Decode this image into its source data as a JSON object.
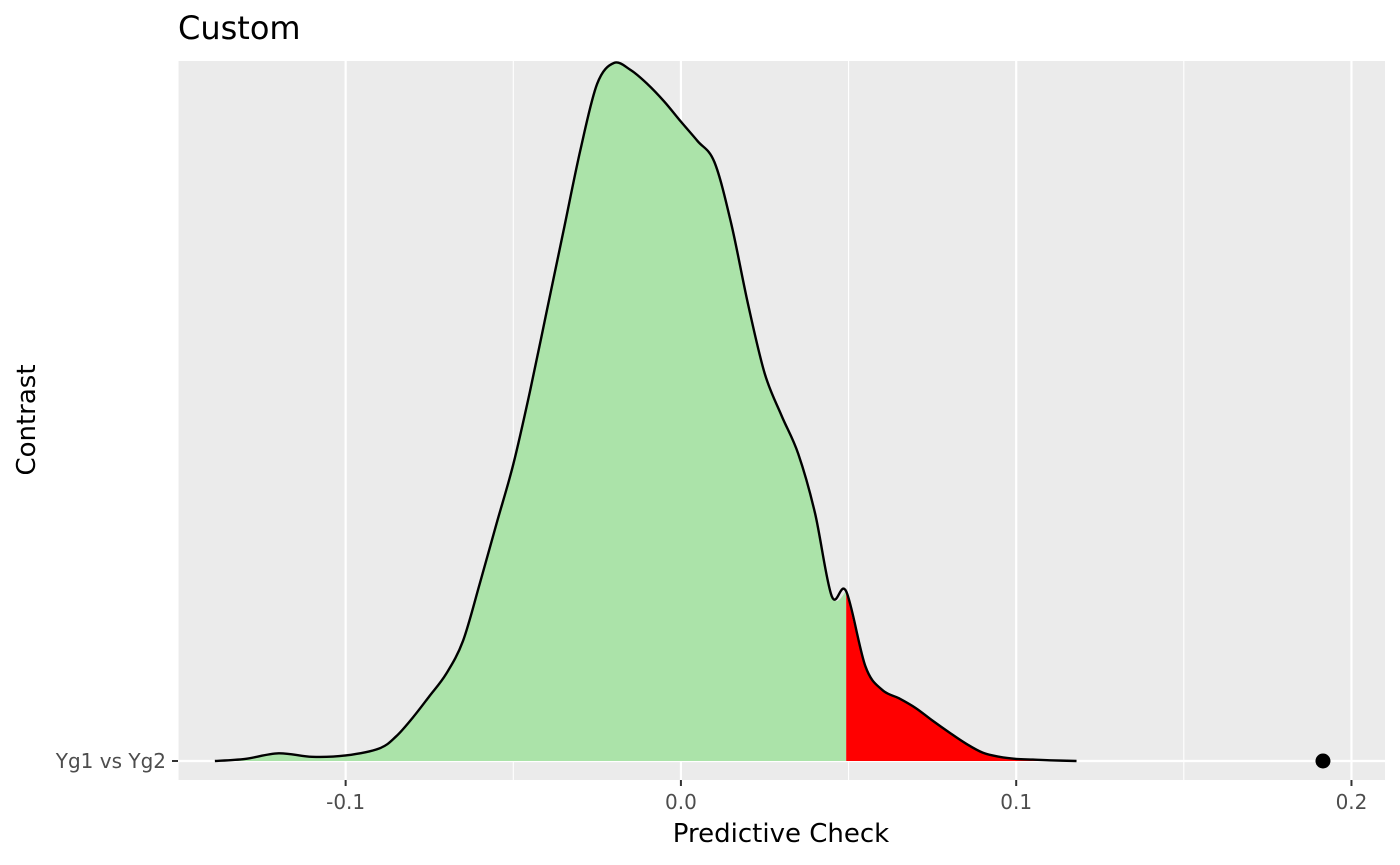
{
  "chart_data": {
    "type": "density",
    "title": "Custom",
    "xlabel": "Predictive Check",
    "ylabel": "Contrast",
    "xlim": [
      -0.15,
      0.21
    ],
    "x_ticks": [
      -0.1,
      0.0,
      0.1,
      0.2
    ],
    "x_tick_labels": [
      "-0.1",
      "0.0",
      "0.1",
      "0.2"
    ],
    "categories": [
      "Yg1 vs Yg2"
    ],
    "grid": true,
    "colors": {
      "panel_background": "#ebebeb",
      "grid": "#ffffff",
      "density_fill": "#abe3a9",
      "tail_fill": "#ff0000",
      "outline": "#000000",
      "observed_point": "#000000"
    },
    "tail_threshold": 0.0493,
    "observed_value": 0.1915,
    "density": {
      "x": [
        -0.139,
        -0.13,
        -0.12,
        -0.11,
        -0.1,
        -0.09,
        -0.085,
        -0.08,
        -0.075,
        -0.07,
        -0.065,
        -0.06,
        -0.055,
        -0.05,
        -0.045,
        -0.04,
        -0.035,
        -0.03,
        -0.025,
        -0.02,
        -0.015,
        -0.01,
        -0.005,
        0.0,
        0.005,
        0.01,
        0.015,
        0.02,
        0.025,
        0.03,
        0.035,
        0.04,
        0.045,
        0.0493,
        0.055,
        0.06,
        0.065,
        0.07,
        0.075,
        0.08,
        0.085,
        0.09,
        0.095,
        0.1,
        0.105,
        0.11,
        0.118
      ],
      "y": [
        0.0,
        0.003,
        0.011,
        0.006,
        0.008,
        0.018,
        0.035,
        0.062,
        0.093,
        0.125,
        0.172,
        0.254,
        0.34,
        0.425,
        0.53,
        0.645,
        0.76,
        0.875,
        0.97,
        1.0,
        0.99,
        0.97,
        0.945,
        0.916,
        0.888,
        0.858,
        0.77,
        0.655,
        0.555,
        0.495,
        0.44,
        0.355,
        0.236,
        0.243,
        0.136,
        0.102,
        0.09,
        0.076,
        0.058,
        0.041,
        0.025,
        0.012,
        0.006,
        0.003,
        0.002,
        0.001,
        0.0
      ]
    }
  }
}
